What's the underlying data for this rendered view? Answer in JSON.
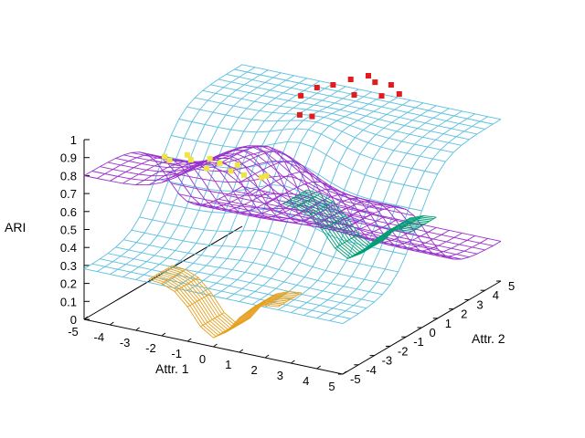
{
  "chart_data": {
    "type": "surface",
    "zlabel": "ARI",
    "xlabel": "Attr. 1",
    "ylabel": "Attr. 2",
    "xlim": [
      -5,
      5
    ],
    "ylim": [
      -5,
      5
    ],
    "zlim": [
      0,
      1
    ],
    "x_ticks": [
      "-5",
      "-4",
      "-3",
      "-2",
      "-1",
      "0",
      "1",
      "2",
      "3",
      "4",
      "5"
    ],
    "y_ticks": [
      "-5",
      "-4",
      "-3",
      "-2",
      "-1",
      "0",
      "1",
      "2",
      "3",
      "4",
      "5"
    ],
    "z_ticks": [
      "0",
      "0.1",
      "0.2",
      "0.3",
      "0.4",
      "0.5",
      "0.6",
      "0.7",
      "0.8",
      "0.9",
      "1"
    ],
    "grid": false,
    "legend": "none",
    "series": [
      {
        "color": "#5bbfdf",
        "surface": "sigmoid rising along Attr. 2 with bump at Attr. 1 = 0",
        "points": [
          [
            -5,
            -5,
            0.28
          ],
          [
            5,
            -5,
            0.28
          ],
          [
            0,
            0,
            0.55
          ],
          [
            -5,
            5,
            0.9
          ],
          [
            5,
            5,
            0.88
          ],
          [
            0,
            5,
            0.98
          ]
        ]
      },
      {
        "color": "#9932cc",
        "surface": "sigmoid falling along Attr. 2 with peak near Attr. 1 = 0",
        "points": [
          [
            -5,
            -5,
            0.75
          ],
          [
            0,
            -5,
            0.98
          ],
          [
            5,
            -5,
            0.8
          ],
          [
            0,
            0,
            0.45
          ],
          [
            -5,
            5,
            0.25
          ],
          [
            5,
            5,
            0.2
          ]
        ]
      },
      {
        "color": "#e6a020",
        "surface": "dip at Attr. 1 = 0, Attr. 2 = -5",
        "points": [
          [
            0,
            -5,
            0.05
          ],
          [
            -2,
            -5,
            0.2
          ],
          [
            2,
            -5,
            0.2
          ]
        ]
      },
      {
        "color": "#009e73",
        "surface": "dip at Attr. 1 = 0, Attr. 2 = 5",
        "points": [
          [
            0,
            5,
            0.05
          ],
          [
            -2,
            5,
            0.2
          ],
          [
            2,
            5,
            0.2
          ]
        ]
      }
    ],
    "scatter": [
      {
        "color": "#f0e442",
        "points": [
          [
            -2,
            -4.5,
            0.95
          ],
          [
            -1.5,
            -4.2,
            0.98
          ],
          [
            -1,
            -4.8,
            1.0
          ],
          [
            -0.5,
            -4.4,
            1.0
          ],
          [
            0,
            -4.6,
            1.0
          ],
          [
            0.5,
            -4.3,
            0.99
          ],
          [
            1,
            -4.7,
            0.97
          ],
          [
            1.5,
            -4.1,
            0.95
          ],
          [
            -1,
            -3.8,
            0.9
          ],
          [
            0,
            -3.9,
            0.92
          ],
          [
            1,
            -3.6,
            0.9
          ],
          [
            -2.5,
            -4.0,
            0.93
          ]
        ]
      },
      {
        "color": "#e41a1c",
        "points": [
          [
            -1,
            4.2,
            0.95
          ],
          [
            -0.5,
            4.5,
            0.98
          ],
          [
            0,
            4.8,
            1.0
          ],
          [
            0.5,
            4.4,
            1.0
          ],
          [
            1,
            4.6,
            0.99
          ],
          [
            1.5,
            4.3,
            0.97
          ],
          [
            -1.5,
            4.0,
            0.93
          ],
          [
            -2,
            3.8,
            0.88
          ],
          [
            0,
            3.9,
            0.94
          ],
          [
            1,
            4.0,
            0.96
          ],
          [
            -1.8,
            3.4,
            0.8
          ],
          [
            -1.2,
            3.2,
            0.82
          ]
        ]
      }
    ]
  }
}
